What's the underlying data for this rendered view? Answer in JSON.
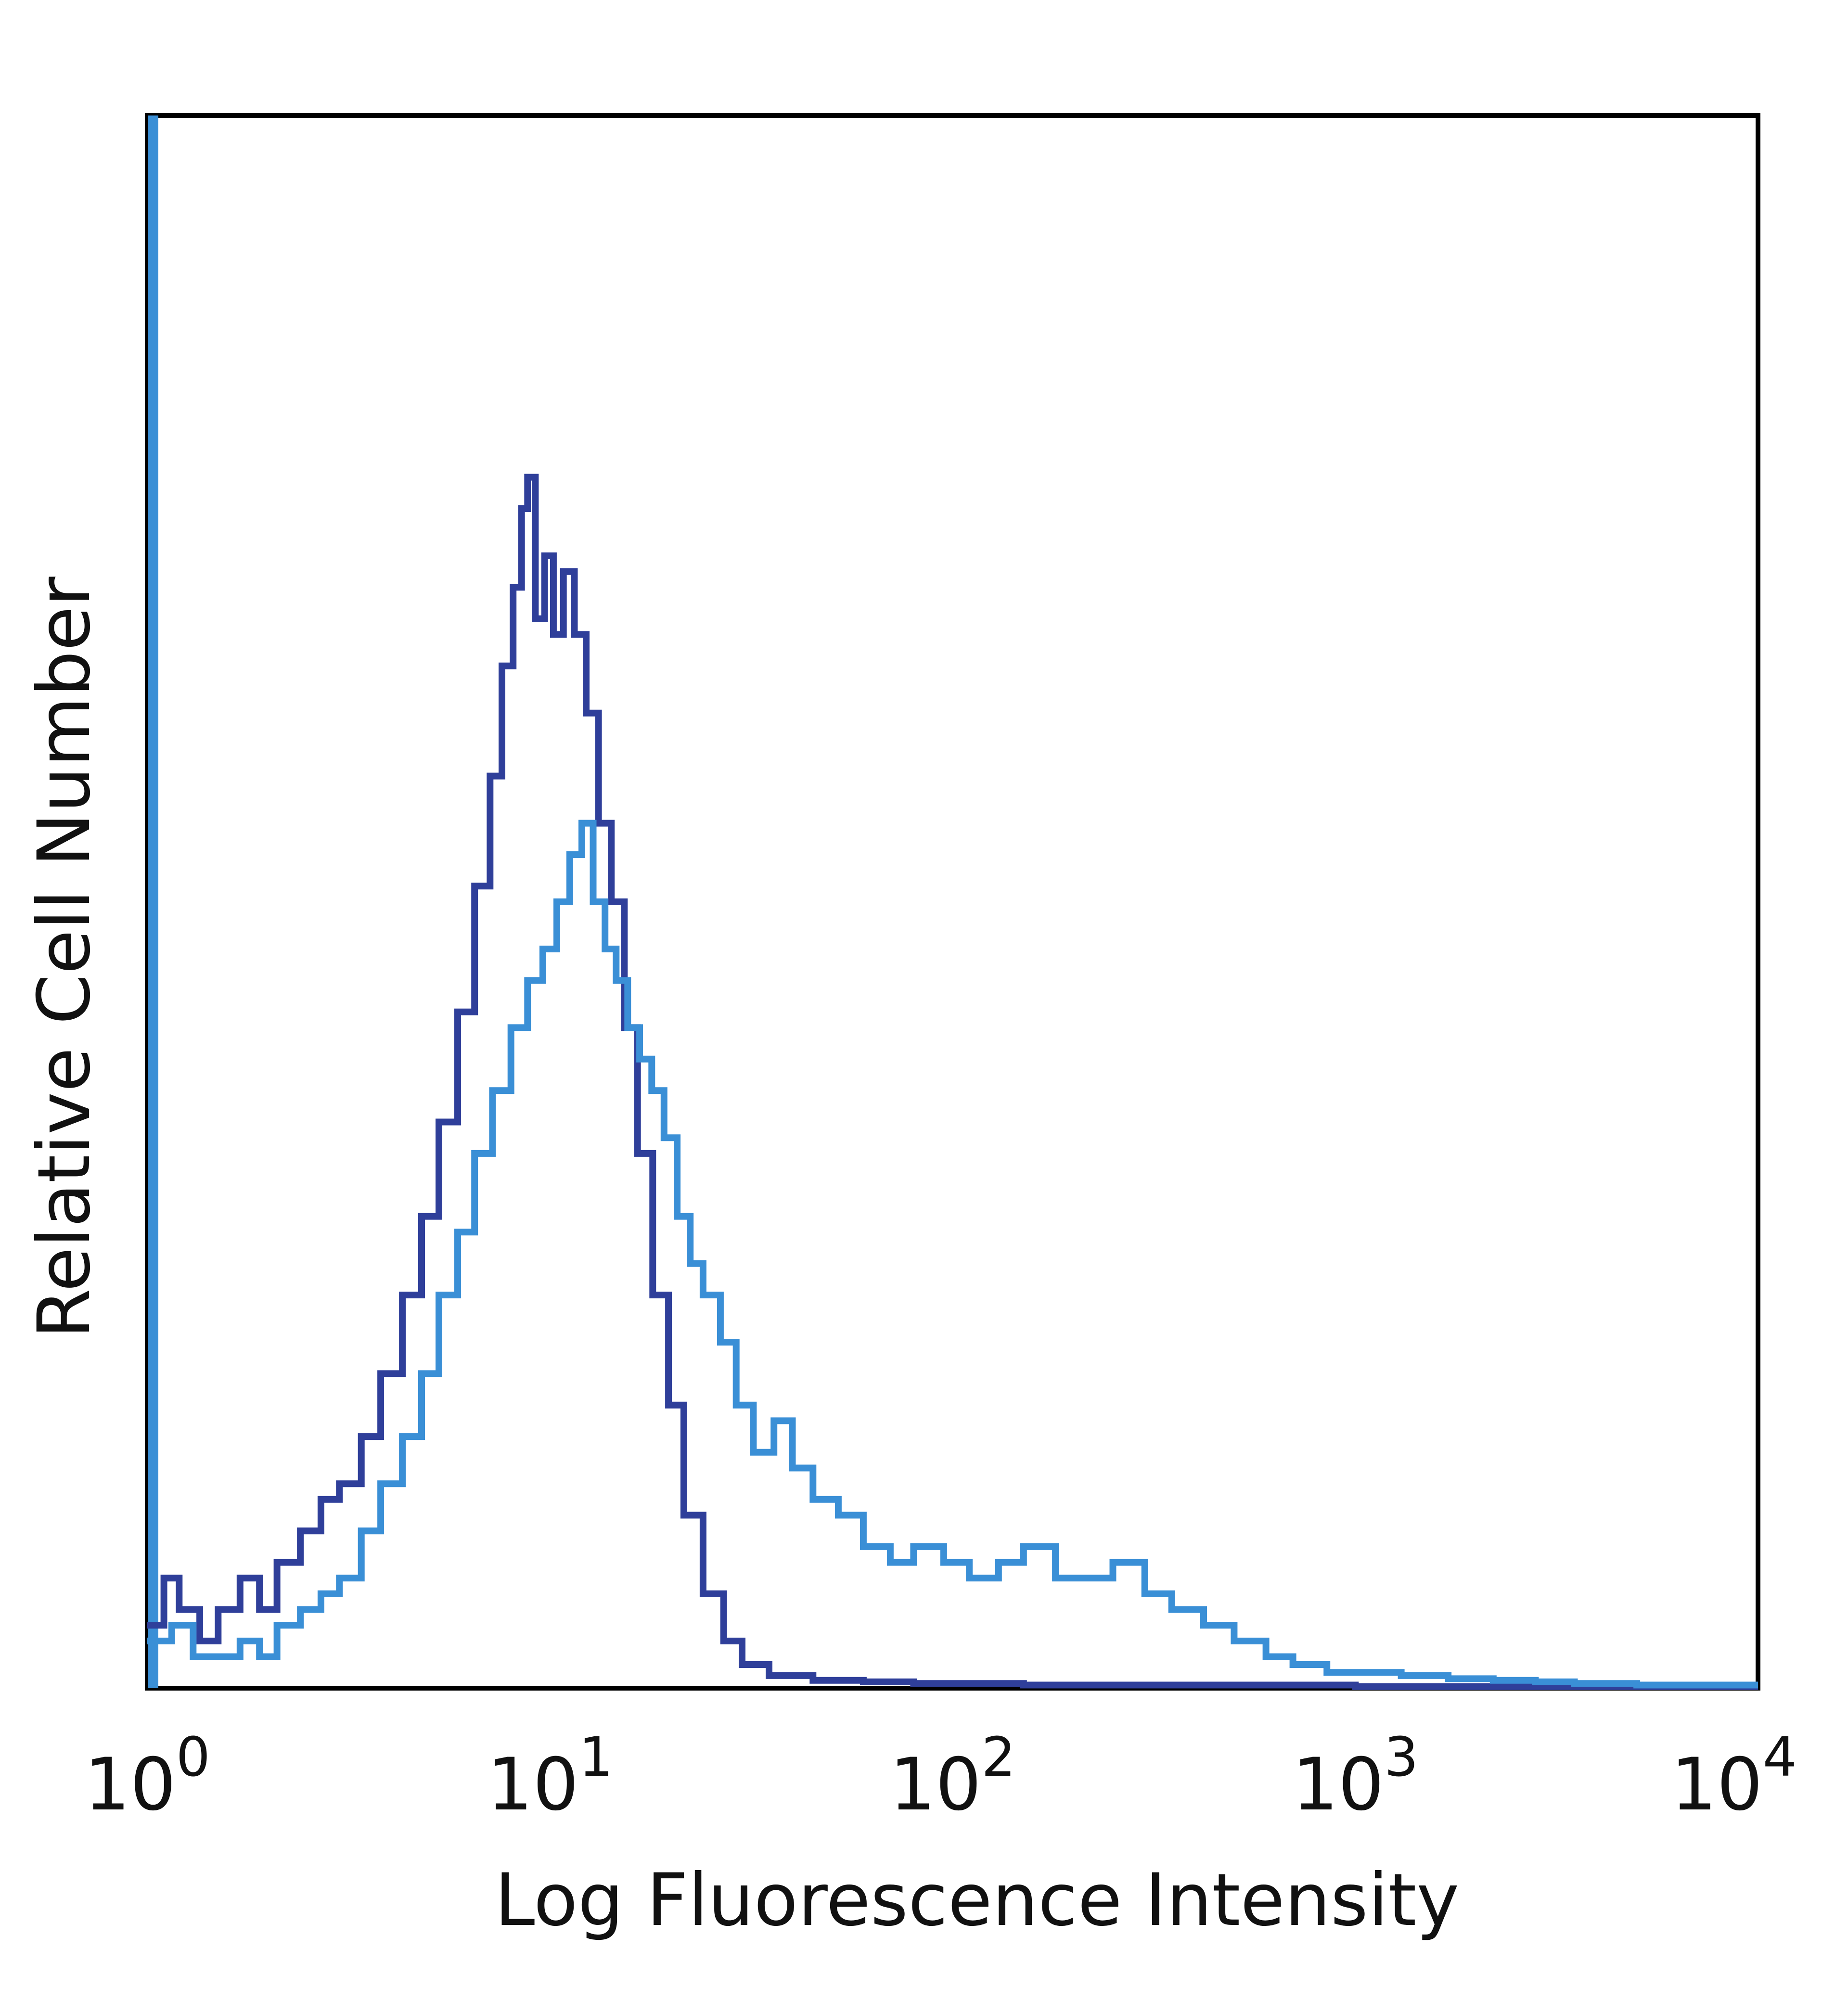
{
  "chart_data": {
    "type": "line",
    "title": "",
    "xlabel": "Log Fluorescence Intensity",
    "ylabel": "Relative Cell Number",
    "x_scale": "log",
    "xlim": [
      1,
      10000
    ],
    "ylim": [
      0,
      100
    ],
    "x_ticks": [
      {
        "base": "10",
        "exp": "0",
        "value": 1
      },
      {
        "base": "10",
        "exp": "1",
        "value": 10
      },
      {
        "base": "10",
        "exp": "2",
        "value": 100
      },
      {
        "base": "10",
        "exp": "3",
        "value": 1000
      },
      {
        "base": "10",
        "exp": "4",
        "value": 10000
      }
    ],
    "grid": false,
    "legend": "none",
    "series": [
      {
        "color": "#2f3f9a",
        "points": [
          [
            1.0,
            4
          ],
          [
            1.1,
            7
          ],
          [
            1.2,
            5
          ],
          [
            1.35,
            3
          ],
          [
            1.5,
            5
          ],
          [
            1.7,
            7
          ],
          [
            1.9,
            5
          ],
          [
            2.1,
            8
          ],
          [
            2.4,
            10
          ],
          [
            2.7,
            12
          ],
          [
            3.0,
            13
          ],
          [
            3.4,
            16
          ],
          [
            3.8,
            20
          ],
          [
            4.3,
            25
          ],
          [
            4.8,
            30
          ],
          [
            5.3,
            36
          ],
          [
            5.9,
            43
          ],
          [
            6.5,
            51
          ],
          [
            7.1,
            58
          ],
          [
            7.6,
            65
          ],
          [
            8.1,
            70
          ],
          [
            8.5,
            75
          ],
          [
            8.8,
            77
          ],
          [
            9.2,
            68
          ],
          [
            9.7,
            72
          ],
          [
            10.2,
            67
          ],
          [
            10.8,
            71
          ],
          [
            11.5,
            67
          ],
          [
            12.3,
            62
          ],
          [
            13.2,
            55
          ],
          [
            14.2,
            50
          ],
          [
            15.3,
            42
          ],
          [
            16.5,
            34
          ],
          [
            18.0,
            25
          ],
          [
            19.7,
            18
          ],
          [
            21.5,
            11
          ],
          [
            24.0,
            6
          ],
          [
            27.0,
            3
          ],
          [
            30.0,
            1.5
          ],
          [
            35.0,
            0.8
          ],
          [
            45.0,
            0.5
          ],
          [
            60.0,
            0.4
          ],
          [
            80.0,
            0.3
          ],
          [
            150.0,
            0.2
          ],
          [
            400.0,
            0.2
          ],
          [
            1000.0,
            0.1
          ],
          [
            10000.0,
            0.1
          ]
        ]
      },
      {
        "color": "#3a8fd6",
        "points": [
          [
            1.0,
            3
          ],
          [
            1.15,
            4
          ],
          [
            1.3,
            2
          ],
          [
            1.5,
            2
          ],
          [
            1.7,
            3
          ],
          [
            1.9,
            2
          ],
          [
            2.1,
            4
          ],
          [
            2.4,
            5
          ],
          [
            2.7,
            6
          ],
          [
            3.0,
            7
          ],
          [
            3.4,
            10
          ],
          [
            3.8,
            13
          ],
          [
            4.3,
            16
          ],
          [
            4.8,
            20
          ],
          [
            5.3,
            25
          ],
          [
            5.9,
            29
          ],
          [
            6.5,
            34
          ],
          [
            7.2,
            38
          ],
          [
            8.0,
            42
          ],
          [
            8.8,
            45
          ],
          [
            9.6,
            47
          ],
          [
            10.4,
            50
          ],
          [
            11.2,
            53
          ],
          [
            12.0,
            55
          ],
          [
            12.8,
            50
          ],
          [
            13.7,
            47
          ],
          [
            14.6,
            45
          ],
          [
            15.6,
            42
          ],
          [
            16.7,
            40
          ],
          [
            17.9,
            38
          ],
          [
            19.2,
            35
          ],
          [
            20.7,
            30
          ],
          [
            22.3,
            27
          ],
          [
            24.0,
            25
          ],
          [
            26.5,
            22
          ],
          [
            29.0,
            18
          ],
          [
            32.0,
            15
          ],
          [
            36.0,
            17
          ],
          [
            40.0,
            14
          ],
          [
            45.0,
            12
          ],
          [
            52.0,
            11
          ],
          [
            60.0,
            9
          ],
          [
            70.0,
            8
          ],
          [
            80.0,
            9
          ],
          [
            95.0,
            8
          ],
          [
            110.0,
            7
          ],
          [
            130.0,
            8
          ],
          [
            150.0,
            9
          ],
          [
            180.0,
            7
          ],
          [
            210.0,
            7
          ],
          [
            250.0,
            8
          ],
          [
            300.0,
            6
          ],
          [
            350.0,
            5
          ],
          [
            420.0,
            4
          ],
          [
            500.0,
            3
          ],
          [
            600.0,
            2
          ],
          [
            700.0,
            1.5
          ],
          [
            850.0,
            1
          ],
          [
            1000.0,
            1
          ],
          [
            1300.0,
            0.8
          ],
          [
            1700.0,
            0.6
          ],
          [
            2200.0,
            0.5
          ],
          [
            2800.0,
            0.4
          ],
          [
            3500.0,
            0.3
          ],
          [
            5000.0,
            0.2
          ],
          [
            10000.0,
            0.2
          ]
        ]
      }
    ]
  }
}
